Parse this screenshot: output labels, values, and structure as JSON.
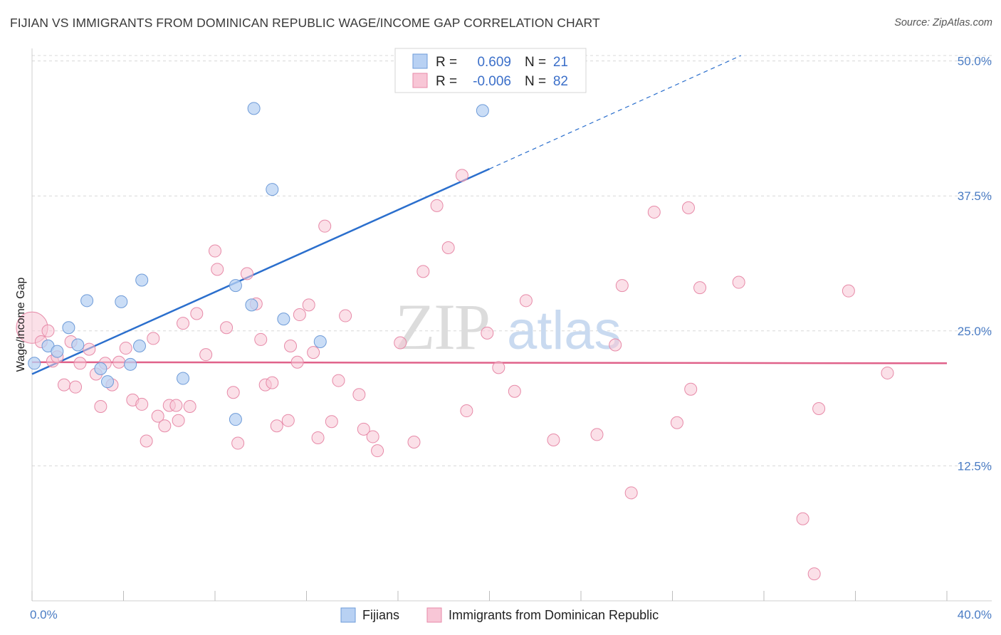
{
  "title": "FIJIAN VS IMMIGRANTS FROM DOMINICAN REPUBLIC WAGE/INCOME GAP CORRELATION CHART",
  "source": "Source: ZipAtlas.com",
  "watermark": {
    "zip": "ZIP",
    "atlas": "atlas"
  },
  "colors": {
    "blue_fill": "#b8d1f3",
    "blue_stroke": "#6e9bd8",
    "blue_line": "#2b6fcd",
    "pink_fill": "#f8c6d6",
    "pink_stroke": "#e78aa8",
    "pink_line": "#e0628a",
    "grid": "#d8d8d8",
    "tick_text": "#4a7cc4"
  },
  "legend": {
    "rows": [
      {
        "r_label": "R =",
        "r_value": "0.609",
        "n_label": "N =",
        "n_value": "21"
      },
      {
        "r_label": "R =",
        "r_value": "-0.006",
        "n_label": "N =",
        "n_value": "82"
      }
    ]
  },
  "chart_data": {
    "type": "scatter",
    "title": "FIJIAN VS IMMIGRANTS FROM DOMINICAN REPUBLIC WAGE/INCOME GAP CORRELATION CHART",
    "xlabel": "",
    "ylabel": "Wage/Income Gap",
    "xlim": [
      0,
      40
    ],
    "ylim": [
      0,
      50.5
    ],
    "x_tick_labels": [
      "0.0%",
      "40.0%"
    ],
    "y_ticks": [
      12.5,
      25.0,
      37.5,
      50.0
    ],
    "y_tick_labels": [
      "12.5%",
      "25.0%",
      "37.5%",
      "50.0%"
    ],
    "legend_position": "top-center",
    "series": [
      {
        "name": "Fijians",
        "r": 0.609,
        "n": 21,
        "trend": {
          "x0": 0,
          "y0": 21.0,
          "x1": 20,
          "y1": 40.0,
          "dashed_to_x": 31,
          "dashed_to_y": 50.5
        },
        "points": [
          [
            0.1,
            22.0
          ],
          [
            0.7,
            23.6
          ],
          [
            1.1,
            23.1
          ],
          [
            1.6,
            25.3
          ],
          [
            2.0,
            23.7
          ],
          [
            2.4,
            27.8
          ],
          [
            3.0,
            21.5
          ],
          [
            3.3,
            20.3
          ],
          [
            3.9,
            27.7
          ],
          [
            4.3,
            21.9
          ],
          [
            4.7,
            23.6
          ],
          [
            4.8,
            29.7
          ],
          [
            6.6,
            20.6
          ],
          [
            8.9,
            16.8
          ],
          [
            8.9,
            29.2
          ],
          [
            9.6,
            27.4
          ],
          [
            9.7,
            45.6
          ],
          [
            10.5,
            38.1
          ],
          [
            11.0,
            26.1
          ],
          [
            12.6,
            24.0
          ],
          [
            19.7,
            45.4
          ]
        ]
      },
      {
        "name": "Immigrants from Dominican Republic",
        "r": -0.006,
        "n": 82,
        "trend": {
          "x0": 0,
          "y0": 22.1,
          "x1": 40,
          "y1": 22.0
        },
        "points": [
          [
            0.0,
            25.3
          ],
          [
            0.4,
            24.0
          ],
          [
            0.7,
            25.0
          ],
          [
            0.9,
            22.2
          ],
          [
            1.1,
            22.6
          ],
          [
            1.4,
            20.0
          ],
          [
            1.7,
            24.0
          ],
          [
            1.9,
            19.8
          ],
          [
            2.1,
            22.0
          ],
          [
            2.5,
            23.3
          ],
          [
            2.8,
            21.0
          ],
          [
            3.0,
            18.0
          ],
          [
            3.2,
            22.0
          ],
          [
            3.5,
            20.0
          ],
          [
            3.8,
            22.1
          ],
          [
            4.1,
            23.4
          ],
          [
            4.4,
            18.6
          ],
          [
            4.8,
            18.2
          ],
          [
            5.0,
            14.8
          ],
          [
            5.3,
            24.3
          ],
          [
            5.5,
            17.1
          ],
          [
            5.8,
            16.2
          ],
          [
            6.0,
            18.1
          ],
          [
            6.3,
            18.1
          ],
          [
            6.4,
            16.7
          ],
          [
            6.6,
            25.7
          ],
          [
            6.9,
            18.0
          ],
          [
            7.2,
            26.6
          ],
          [
            7.6,
            22.8
          ],
          [
            8.0,
            32.4
          ],
          [
            8.1,
            30.7
          ],
          [
            8.5,
            25.3
          ],
          [
            8.8,
            19.3
          ],
          [
            9.0,
            14.6
          ],
          [
            9.4,
            30.3
          ],
          [
            9.8,
            27.5
          ],
          [
            10.0,
            24.2
          ],
          [
            10.2,
            20.0
          ],
          [
            10.5,
            20.2
          ],
          [
            10.7,
            16.2
          ],
          [
            11.2,
            16.7
          ],
          [
            11.3,
            23.6
          ],
          [
            11.6,
            22.1
          ],
          [
            11.7,
            26.5
          ],
          [
            12.1,
            27.4
          ],
          [
            12.3,
            23.0
          ],
          [
            12.5,
            15.1
          ],
          [
            12.8,
            34.7
          ],
          [
            13.1,
            16.6
          ],
          [
            13.4,
            20.4
          ],
          [
            13.7,
            26.4
          ],
          [
            14.3,
            19.1
          ],
          [
            14.5,
            15.9
          ],
          [
            14.9,
            15.2
          ],
          [
            15.1,
            13.9
          ],
          [
            16.1,
            23.9
          ],
          [
            16.7,
            14.7
          ],
          [
            17.1,
            30.5
          ],
          [
            17.7,
            36.6
          ],
          [
            18.2,
            32.7
          ],
          [
            18.8,
            39.4
          ],
          [
            19.0,
            17.6
          ],
          [
            19.9,
            24.8
          ],
          [
            20.4,
            21.6
          ],
          [
            21.1,
            19.4
          ],
          [
            21.6,
            27.8
          ],
          [
            22.8,
            14.9
          ],
          [
            24.7,
            15.4
          ],
          [
            25.5,
            23.7
          ],
          [
            25.8,
            29.2
          ],
          [
            26.2,
            10.0
          ],
          [
            27.2,
            36.0
          ],
          [
            28.2,
            16.5
          ],
          [
            28.7,
            36.4
          ],
          [
            28.8,
            19.6
          ],
          [
            29.2,
            29.0
          ],
          [
            30.9,
            29.5
          ],
          [
            33.7,
            7.6
          ],
          [
            34.2,
            2.5
          ],
          [
            34.4,
            17.8
          ],
          [
            35.7,
            28.7
          ],
          [
            37.4,
            21.1
          ]
        ]
      }
    ]
  },
  "bottom_legend": {
    "items": [
      {
        "label": "Fijians"
      },
      {
        "label": "Immigrants from Dominican Republic"
      }
    ]
  }
}
